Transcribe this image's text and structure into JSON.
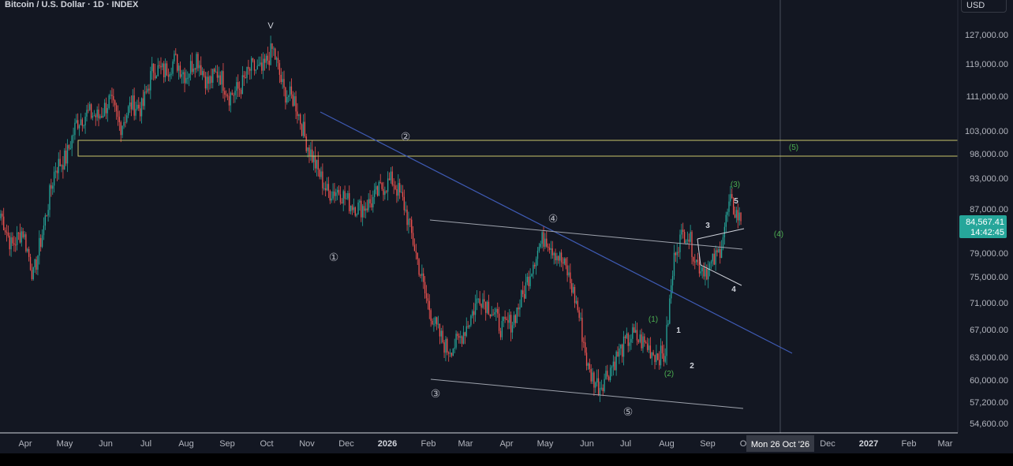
{
  "header": {
    "symbol_title": "Bitcoin / U.S. Dollar · 1D · INDEX",
    "currency_button": "USD"
  },
  "price_axis": {
    "labels": [
      "127,000.00",
      "119,000.00",
      "111,000.00",
      "103,000.00",
      "98,000.00",
      "93,000.00",
      "87,000.00",
      "79,000.00",
      "75,000.00",
      "71,000.00",
      "67,000.00",
      "63,000.00",
      "60,000.00",
      "57,200.00",
      "54,600.00"
    ],
    "last_price": "84,567.41",
    "countdown": "14:42:45"
  },
  "time_axis": {
    "labels": [
      "Apr",
      "May",
      "Jun",
      "Jul",
      "Aug",
      "Sep",
      "Oct",
      "Nov",
      "Dec",
      "2026",
      "Feb",
      "Mar",
      "Apr",
      "May",
      "Jun",
      "Jul",
      "Aug",
      "Sep",
      "O",
      "Dec",
      "2027",
      "Feb",
      "Mar"
    ],
    "crosshair_label": "Mon 26 Oct '26"
  },
  "annotations": {
    "wave_v": "V",
    "circled": [
      "①",
      "②",
      "③",
      "④",
      "⑤"
    ],
    "green": [
      "(1)",
      "(2)",
      "(3)",
      "(4)",
      "(5)"
    ],
    "white": [
      "1",
      "2",
      "3",
      "4",
      "5"
    ]
  },
  "colors": {
    "background": "#131722",
    "up": "#26a69a",
    "down": "#ef5350",
    "trendline": "#3f5bb5",
    "zone": "#c9c46a",
    "label_green": "#4caf50",
    "last_price_bg": "#26a69a"
  },
  "chart_data": {
    "type": "candlestick",
    "price_scale": "log",
    "x_axis": "daily dates, Mar 2025 – Mar 2027",
    "y_axis_ticks": [
      127000,
      119000,
      111000,
      103000,
      98000,
      93000,
      87000,
      79000,
      75000,
      71000,
      67000,
      63000,
      60000,
      57200,
      54600
    ],
    "close_path": [
      86000,
      80000,
      83000,
      75000,
      84000,
      95000,
      97000,
      105000,
      107000,
      106000,
      110000,
      104000,
      109000,
      108000,
      118000,
      117000,
      120000,
      116000,
      121000,
      114000,
      117000,
      111000,
      113000,
      118000,
      117000,
      123000,
      112000,
      110000,
      101000,
      95000,
      90000,
      90500,
      88000,
      87000,
      88000,
      91000,
      92500,
      88000,
      80000,
      72000,
      67000,
      64000,
      65000,
      68000,
      72000,
      70000,
      67000,
      68000,
      72000,
      78000,
      82000,
      79000,
      76000,
      70000,
      61000,
      59000,
      61500,
      64000,
      66000,
      65000,
      63500,
      63000,
      80000,
      83000,
      77000,
      76000,
      79000,
      88000,
      84567.41
    ],
    "last_price": 84567.41,
    "horizontal_zone": [
      98000,
      101500
    ],
    "grid": false,
    "legend": "none"
  }
}
